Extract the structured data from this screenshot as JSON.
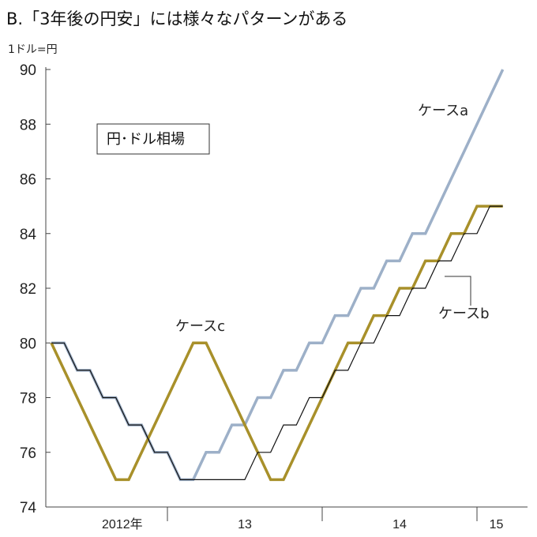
{
  "chart_data": {
    "type": "line",
    "title": "B.「3年後の円安」には様々なパターンがある",
    "ylabel": "1ドル=円",
    "annotation_box": "円･ドル相場",
    "ylim": [
      74,
      90
    ],
    "yticks": [
      74,
      76,
      78,
      80,
      82,
      84,
      86,
      88,
      90
    ],
    "xlim": [
      0,
      36
    ],
    "xticks": [
      {
        "label": "2012年",
        "x": 5.5
      },
      {
        "label": "13",
        "x": 15
      },
      {
        "label": "14",
        "x": 27
      },
      {
        "label": "15",
        "x": 34.5
      }
    ],
    "x_dividers": [
      9,
      21,
      33
    ],
    "series": [
      {
        "name": "ケースa",
        "color": "#9db0c8",
        "width": 3.5,
        "points": [
          [
            0,
            80
          ],
          [
            1,
            80
          ],
          [
            2,
            79
          ],
          [
            3,
            79
          ],
          [
            4,
            78
          ],
          [
            5,
            78
          ],
          [
            6,
            77
          ],
          [
            7,
            77
          ],
          [
            8,
            76
          ],
          [
            9,
            76
          ],
          [
            10,
            75
          ],
          [
            11,
            75
          ],
          [
            12,
            76
          ],
          [
            13,
            76
          ],
          [
            14,
            77
          ],
          [
            15,
            77
          ],
          [
            16,
            78
          ],
          [
            17,
            78
          ],
          [
            18,
            79
          ],
          [
            19,
            79
          ],
          [
            20,
            80
          ],
          [
            21,
            80
          ],
          [
            22,
            81
          ],
          [
            23,
            81
          ],
          [
            24,
            82
          ],
          [
            25,
            82
          ],
          [
            26,
            83
          ],
          [
            27,
            83
          ],
          [
            28,
            84
          ],
          [
            29,
            84
          ],
          [
            30,
            85
          ],
          [
            31,
            86
          ],
          [
            32,
            87
          ],
          [
            33,
            88
          ],
          [
            34,
            89
          ],
          [
            35,
            90
          ]
        ]
      },
      {
        "name": "ケースb",
        "color": "#111111",
        "width": 1.2,
        "points": [
          [
            0,
            80
          ],
          [
            1,
            80
          ],
          [
            2,
            79
          ],
          [
            3,
            79
          ],
          [
            4,
            78
          ],
          [
            5,
            78
          ],
          [
            6,
            77
          ],
          [
            7,
            77
          ],
          [
            8,
            76
          ],
          [
            9,
            76
          ],
          [
            10,
            75
          ],
          [
            11,
            75
          ],
          [
            12,
            75
          ],
          [
            13,
            75
          ],
          [
            14,
            75
          ],
          [
            15,
            75
          ],
          [
            16,
            76
          ],
          [
            17,
            76
          ],
          [
            18,
            77
          ],
          [
            19,
            77
          ],
          [
            20,
            78
          ],
          [
            21,
            78
          ],
          [
            22,
            79
          ],
          [
            23,
            79
          ],
          [
            24,
            80
          ],
          [
            25,
            80
          ],
          [
            26,
            81
          ],
          [
            27,
            81
          ],
          [
            28,
            82
          ],
          [
            29,
            82
          ],
          [
            30,
            83
          ],
          [
            31,
            83
          ],
          [
            32,
            84
          ],
          [
            33,
            84
          ],
          [
            34,
            85
          ],
          [
            35,
            85
          ]
        ]
      },
      {
        "name": "ケースc",
        "color": "#a8902a",
        "width": 3.5,
        "points": [
          [
            0,
            80
          ],
          [
            5,
            75
          ],
          [
            6,
            75
          ],
          [
            11,
            80
          ],
          [
            12,
            80
          ],
          [
            17,
            75
          ],
          [
            18,
            75
          ],
          [
            23,
            80
          ],
          [
            24,
            80
          ],
          [
            25,
            81
          ],
          [
            26,
            81
          ],
          [
            27,
            82
          ],
          [
            28,
            82
          ],
          [
            29,
            83
          ],
          [
            30,
            83
          ],
          [
            31,
            84
          ],
          [
            32,
            84
          ],
          [
            33,
            85
          ],
          [
            35,
            85
          ]
        ]
      }
    ],
    "labels": {
      "a": "ケースa",
      "b": "ケースb",
      "c": "ケースc"
    }
  }
}
